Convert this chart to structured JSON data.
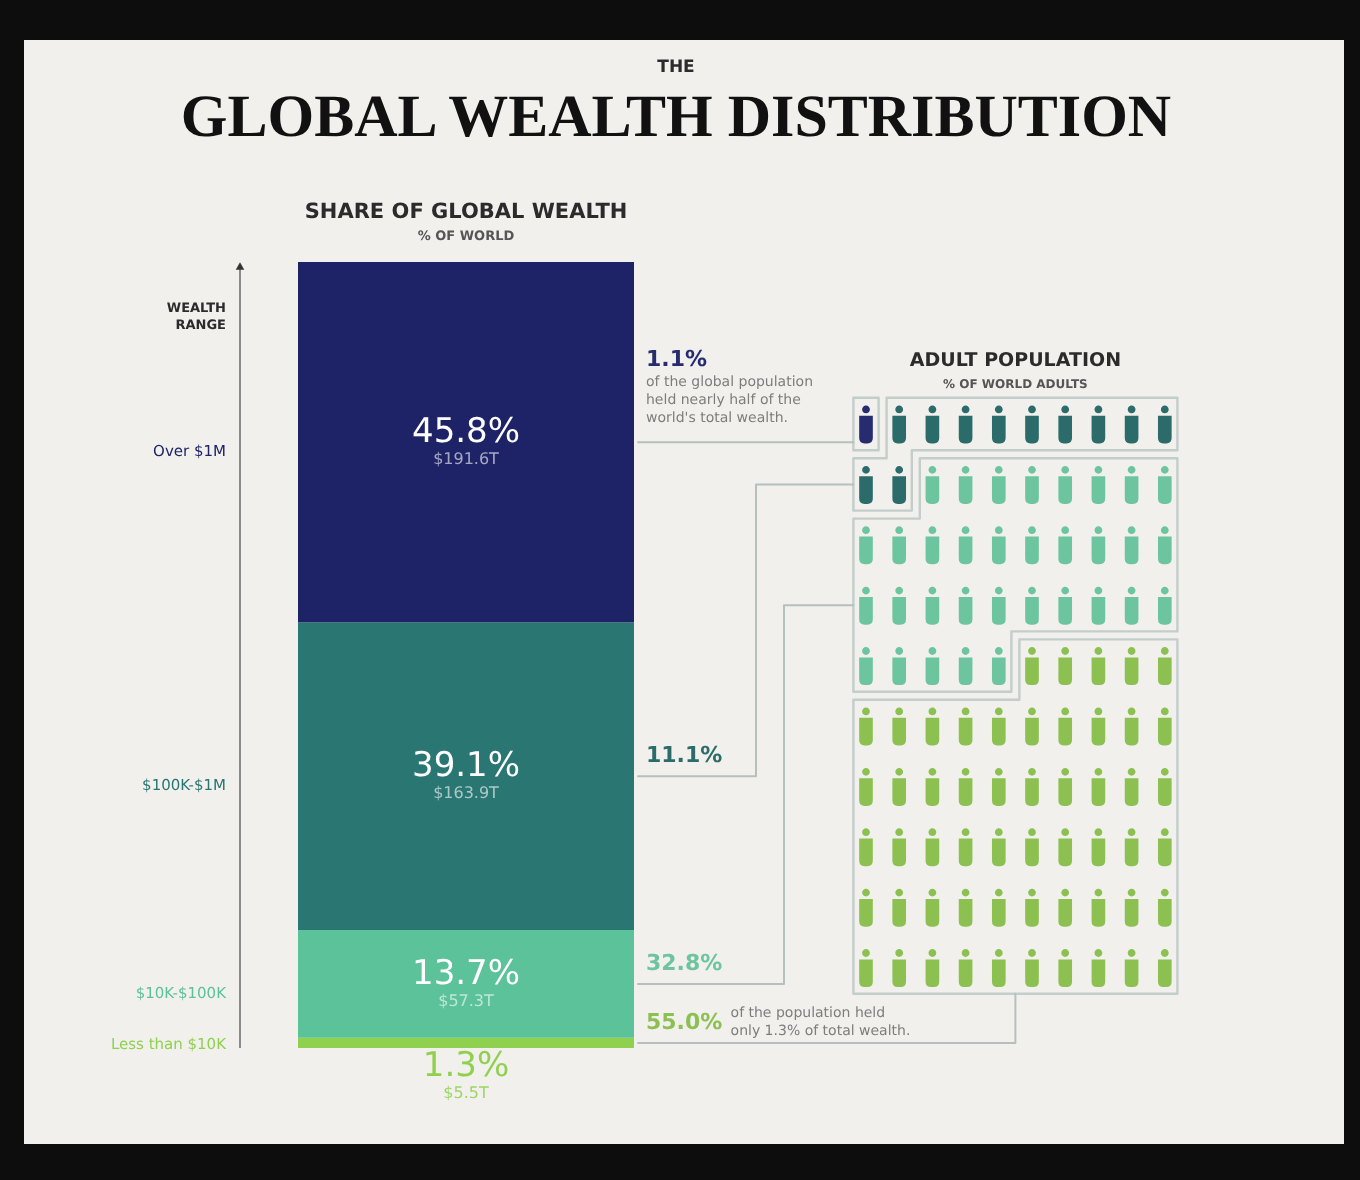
{
  "chart_data": [
    {
      "type": "other",
      "title": "THE GLOBAL WEALTH DISTRIBUTION"
    },
    {
      "type": "bar",
      "title": "SHARE OF GLOBAL WEALTH",
      "subtitle": "% OF WORLD",
      "legend_title": "WEALTH RANGE",
      "categories": [
        null
      ],
      "stacked": true,
      "tick_labels": false,
      "series": [
        {
          "name": "Less than $10K",
          "color": "#8fd14f",
          "values": [
            1.3
          ],
          "value_labels": [
            "1.3%"
          ]
        },
        {
          "name": "$10K-$100K",
          "color": "#5cc29a",
          "values": [
            13.7
          ],
          "value_labels": [
            "13.7%"
          ]
        },
        {
          "name": "$100K-$1M",
          "color": "#2a7673",
          "values": [
            39.1
          ],
          "value_labels": [
            "39.1%"
          ]
        },
        {
          "name": "Over $1M",
          "color": "#1e2367",
          "values": [
            45.8
          ],
          "value_labels": [
            "45.8%"
          ]
        }
      ],
      "annotations": [
        "$191.6T",
        "$163.9T",
        "$57.3T",
        "$5.5T"
      ]
    },
    {
      "type": "other",
      "title": "ADULT POPULATION",
      "subtitle": "% OF WORLD ADULTS",
      "values": [
        1.1,
        11.1,
        32.8,
        55.0
      ],
      "colors": [
        "#262c6e",
        "#2b6b69",
        "#6dc59f",
        "#8cc152"
      ],
      "value_labels": [
        "1.1%",
        "11.1%",
        "32.8%",
        "55.0%"
      ],
      "annotations": [
        "of the global population held nearly half of the world's total wealth.",
        "of the population held only 1.3% of total wealth."
      ]
    }
  ]
}
